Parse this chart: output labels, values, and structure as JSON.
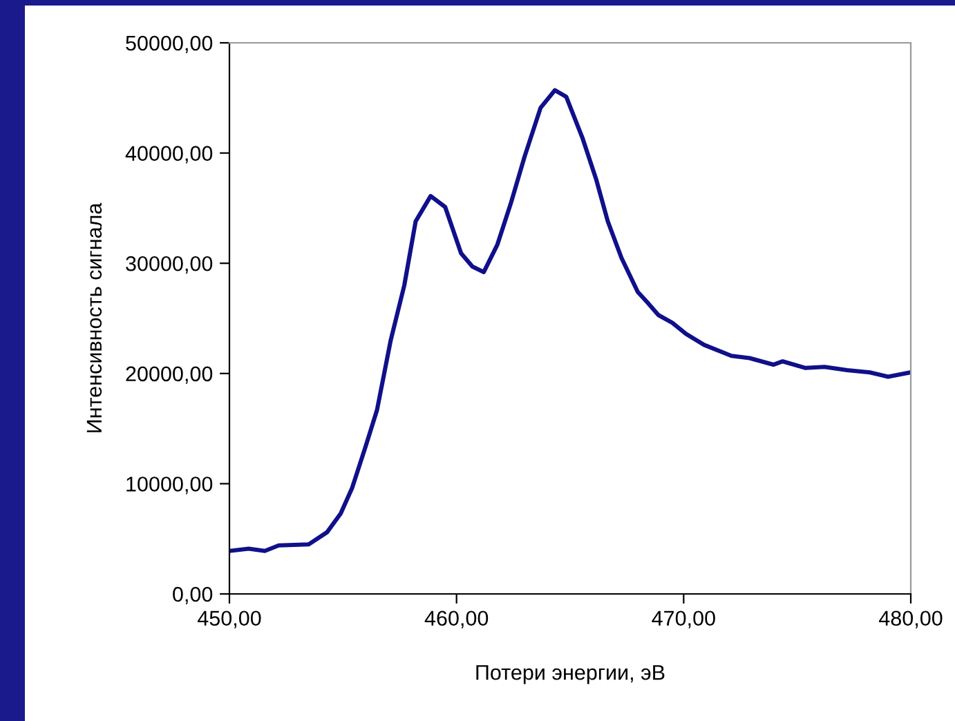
{
  "chart_data": {
    "type": "line",
    "xlabel": "Потери энергии, эВ",
    "ylabel": "Интенсивность сигнала",
    "xlim": [
      450,
      480
    ],
    "ylim": [
      0,
      50000
    ],
    "xticks": [
      {
        "value": 450,
        "label": "450,00"
      },
      {
        "value": 460,
        "label": "460,00"
      },
      {
        "value": 470,
        "label": "470,00"
      },
      {
        "value": 480,
        "label": "480,00"
      }
    ],
    "yticks": [
      {
        "value": 0,
        "label": "0,00"
      },
      {
        "value": 10000,
        "label": "10000,00"
      },
      {
        "value": 20000,
        "label": "20000,00"
      },
      {
        "value": 30000,
        "label": "30000,00"
      },
      {
        "value": 40000,
        "label": "40000,00"
      },
      {
        "value": 50000,
        "label": "50000,00"
      }
    ],
    "grid": false,
    "marker": "none",
    "line_style": "solid",
    "series": [
      {
        "color": "#10108a",
        "x": [
          450,
          450.85,
          451.56,
          452.17,
          453.49,
          454.3,
          454.9,
          455.4,
          456.0,
          456.5,
          457.1,
          457.7,
          458.2,
          458.86,
          459.5,
          460.2,
          460.7,
          461.2,
          461.8,
          462.4,
          463.0,
          463.7,
          464.33,
          464.83,
          465.54,
          466.15,
          466.66,
          467.26,
          467.98,
          468.38,
          468.89,
          469.5,
          470.1,
          470.9,
          472.1,
          472.9,
          473.95,
          474.36,
          475.37,
          476.2,
          477.2,
          478.2,
          479.0,
          480
        ],
        "values": [
          3900,
          4100,
          3900,
          4400,
          4500,
          5600,
          7300,
          9600,
          13400,
          16700,
          23000,
          28000,
          33800,
          36100,
          35100,
          30900,
          29700,
          29200,
          31700,
          35500,
          39700,
          44100,
          45700,
          45100,
          41400,
          37600,
          33800,
          30500,
          27400,
          26500,
          25300,
          24600,
          23600,
          22600,
          21600,
          21400,
          20800,
          21100,
          20500,
          20600,
          20300,
          20100,
          19700,
          20100
        ]
      }
    ]
  }
}
